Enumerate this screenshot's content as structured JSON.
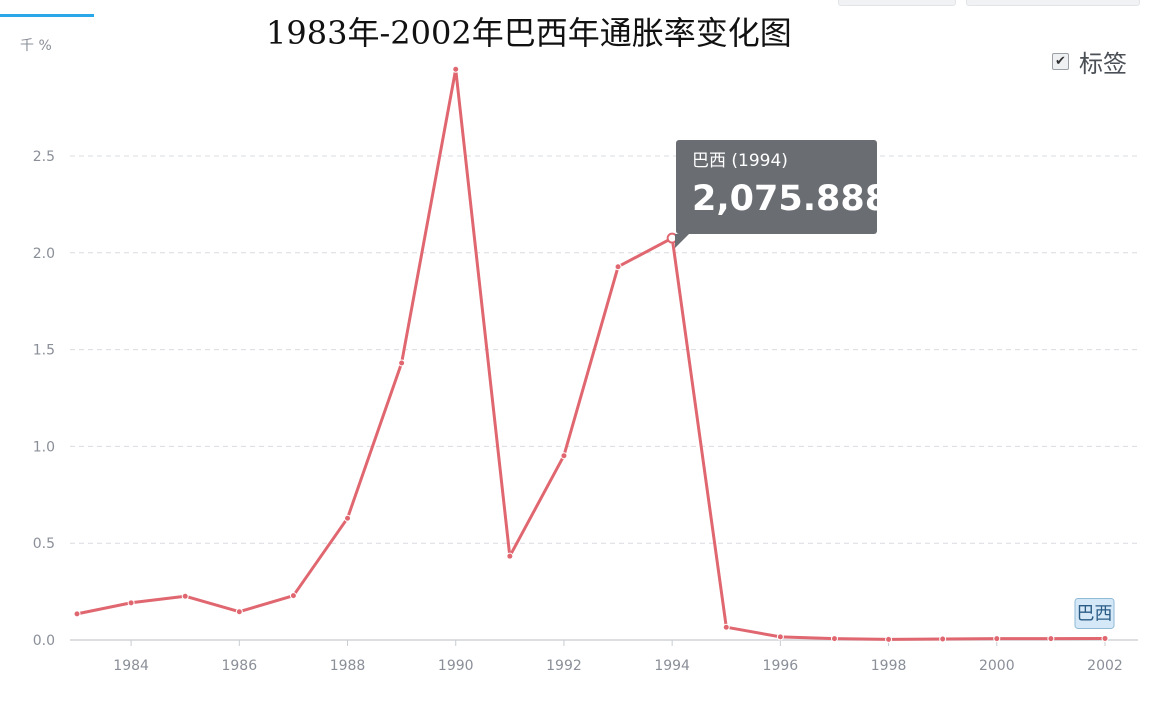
{
  "window": {
    "title": "1983年-2002年巴西年通胀率变化图",
    "unit_label": "千 %"
  },
  "legend_toggle": {
    "checked_glyph": "✔",
    "label": "标签",
    "checked": true
  },
  "tooltip": {
    "header": "巴西 (1994)",
    "value": "2,075.888"
  },
  "chart_data": {
    "type": "line",
    "title": "1983年-2002年巴西年通胀率变化图",
    "ylabel": "千 %",
    "xlabel": "",
    "x": [
      1983,
      1984,
      1985,
      1986,
      1987,
      1988,
      1989,
      1990,
      1991,
      1992,
      1993,
      1994,
      1995,
      1996,
      1997,
      1998,
      1999,
      2000,
      2001,
      2002
    ],
    "series": [
      {
        "name": "巴西",
        "color": "#e06770",
        "values": [
          0.135,
          0.192,
          0.226,
          0.146,
          0.229,
          0.629,
          1.431,
          2.948,
          0.433,
          0.952,
          1.928,
          2.075888,
          0.066,
          0.016,
          0.007,
          0.003,
          0.005,
          0.007,
          0.007,
          0.008
        ]
      }
    ],
    "ylim": [
      0,
      3
    ],
    "yticks": [
      0.0,
      0.5,
      1.0,
      1.5,
      2.0,
      2.5
    ],
    "ytick_labels": [
      "0.0",
      "0.5",
      "1.0",
      "1.5",
      "2.0",
      "2.5"
    ],
    "xticks": [
      1984,
      1986,
      1988,
      1990,
      1992,
      1994,
      1996,
      1998,
      2000,
      2002
    ],
    "xtick_labels": [
      "1984",
      "1986",
      "1988",
      "1990",
      "1992",
      "1994",
      "1996",
      "1998",
      "2000",
      "2002"
    ],
    "highlight_year": 1994,
    "grid": true,
    "series_end_label": "巴西"
  }
}
